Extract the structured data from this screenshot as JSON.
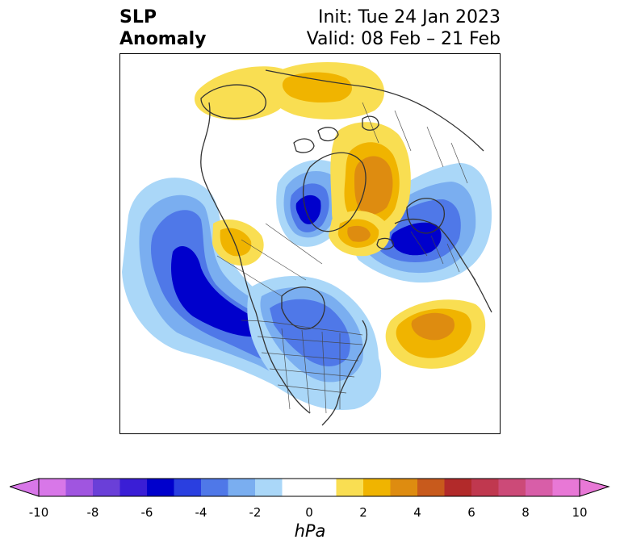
{
  "title": {
    "left_line1": "SLP",
    "left_line2": "Anomaly",
    "right_line1": "Init: Tue 24 Jan 2023",
    "right_line2": "Valid: 08 Feb – 21 Feb"
  },
  "map": {
    "projection": "polar stereographic (North America centered)",
    "features": [
      "coastlines",
      "country borders",
      "state/province borders"
    ],
    "anomaly_centers": [
      {
        "region": "North Pacific (Gulf of Alaska)",
        "sign": "negative",
        "peak_hPa": -6
      },
      {
        "region": "Western Europe / Scandinavia",
        "sign": "negative",
        "peak_hPa": -7
      },
      {
        "region": "Greenland / Baffin",
        "sign": "negative",
        "peak_hPa": -6
      },
      {
        "region": "Central/Eastern Canada and northern US",
        "sign": "negative",
        "peak_hPa": -4
      },
      {
        "region": "Central Russia",
        "sign": "positive",
        "peak_hPa": 5
      },
      {
        "region": "North Atlantic",
        "sign": "positive",
        "peak_hPa": 4
      },
      {
        "region": "Barents / Svalbard",
        "sign": "positive",
        "peak_hPa": 4
      },
      {
        "region": "Bering Sea / Eastern Siberia",
        "sign": "positive",
        "peak_hPa": 2
      },
      {
        "region": "East Siberia (Yakutia)",
        "sign": "positive",
        "peak_hPa": 2
      }
    ]
  },
  "colorbar": {
    "unit": "hPa",
    "tick_labels": [
      "-10",
      "-8",
      "-6",
      "-4",
      "-2",
      "0",
      "2",
      "4",
      "6",
      "8",
      "10"
    ],
    "colors": [
      "#d877e8",
      "#a055e0",
      "#6a3fd8",
      "#3a1ed6",
      "#0000cc",
      "#2a3fe0",
      "#4f78e8",
      "#7aaef0",
      "#aad7f8",
      "#ffffff",
      "#ffffff",
      "#f9de52",
      "#f0b400",
      "#de8c10",
      "#c85a1c",
      "#b22a2a",
      "#c0384f",
      "#cc4a78",
      "#d85ea8",
      "#e878d6"
    ],
    "extend_low_color": "#d877e8",
    "extend_high_color": "#e878d6"
  }
}
